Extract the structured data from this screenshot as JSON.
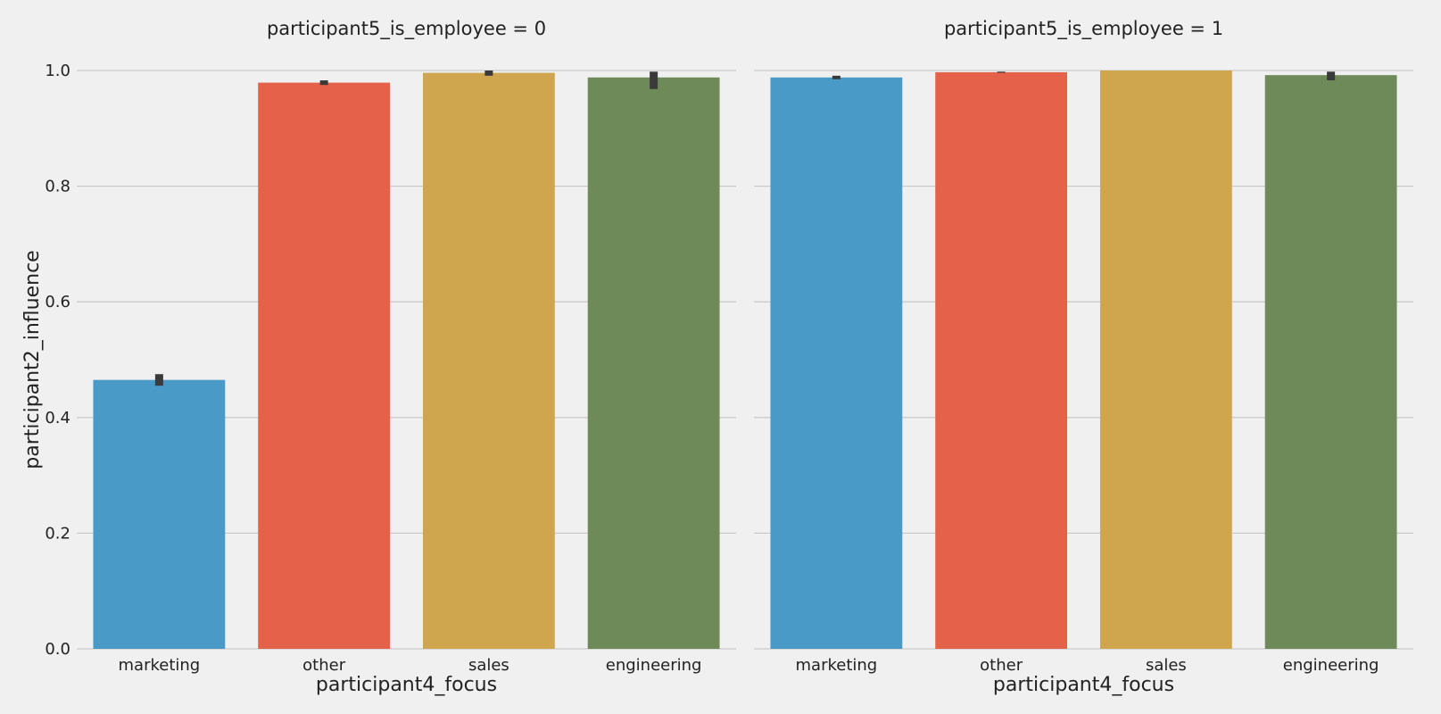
{
  "chart_data": [
    {
      "type": "bar",
      "title": "participant5_is_employee = 0",
      "xlabel": "participant4_focus",
      "ylabel": "participant2_influence",
      "categories": [
        "marketing",
        "other",
        "sales",
        "engineering"
      ],
      "values": [
        0.465,
        0.979,
        0.996,
        0.988
      ],
      "error_low": [
        0.455,
        0.975,
        0.991,
        0.968
      ],
      "error_high": [
        0.475,
        0.983,
        1.0,
        0.998
      ],
      "ylim": [
        0,
        1.0
      ],
      "yticks": [
        "0.0",
        "0.2",
        "0.4",
        "0.6",
        "0.8",
        "1.0"
      ],
      "grid": true
    },
    {
      "type": "bar",
      "title": "participant5_is_employee = 1",
      "xlabel": "participant4_focus",
      "ylabel": "",
      "categories": [
        "marketing",
        "other",
        "sales",
        "engineering"
      ],
      "values": [
        0.988,
        0.997,
        1.0,
        0.992
      ],
      "error_low": [
        0.985,
        0.996,
        1.0,
        0.983
      ],
      "error_high": [
        0.991,
        0.998,
        1.0,
        0.998
      ],
      "ylim": [
        0,
        1.0
      ],
      "yticks": [
        "0.0",
        "0.2",
        "0.4",
        "0.6",
        "0.8",
        "1.0"
      ],
      "grid": true
    }
  ],
  "colors": {
    "bars": [
      "#4a9ac7",
      "#e5624a",
      "#cfa64e",
      "#6f8a59"
    ],
    "grid": "#cbcbcb",
    "errorbar": "#3a3a3a",
    "background": "#f0f0f0"
  }
}
